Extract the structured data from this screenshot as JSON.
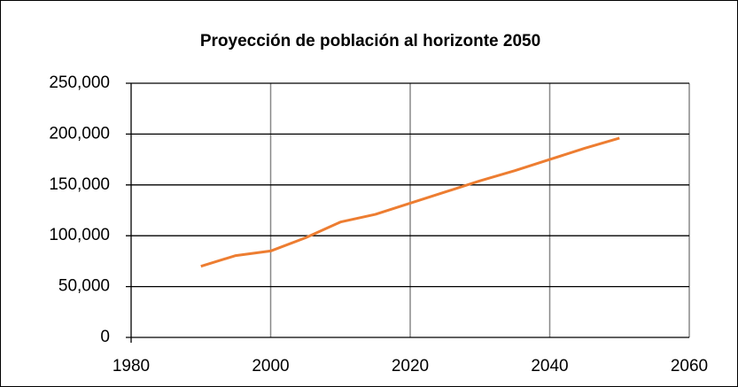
{
  "chart_data": {
    "type": "line",
    "title": "Proyección de población al horizonte 2050",
    "x": [
      1990,
      1995,
      2000,
      2005,
      2010,
      2015,
      2020,
      2025,
      2030,
      2035,
      2040,
      2045,
      2050
    ],
    "values": [
      70000,
      80500,
      85000,
      98000,
      113500,
      121000,
      132000,
      143000,
      154000,
      164000,
      175000,
      186000,
      196000
    ],
    "color": "#ed7d31",
    "xlim": [
      1980,
      2060
    ],
    "xticks": [
      1980,
      2000,
      2020,
      2040,
      2060
    ],
    "ylim": [
      0,
      250000
    ],
    "yticks": [
      0,
      {
        "value": 50000,
        "label": "50,000"
      },
      {
        "value": 100000,
        "label": "100,000"
      },
      {
        "value": 150000,
        "label": "150,000"
      },
      {
        "value": 200000,
        "label": "200,000"
      },
      {
        "value": 250000,
        "label": "250,000"
      }
    ],
    "grid": true
  }
}
